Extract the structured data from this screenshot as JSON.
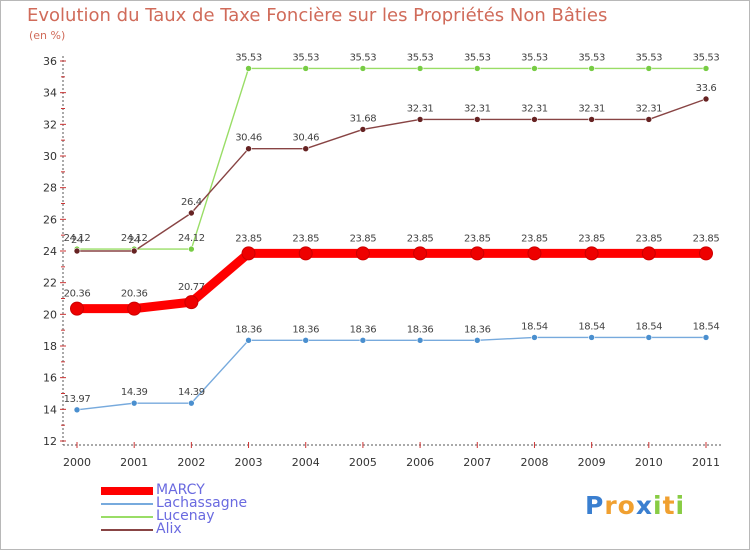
{
  "chart_data": {
    "type": "line",
    "title": "Evolution du Taux de Taxe Foncière sur les Propriétés Non Bâties",
    "ylabel": "(en %)",
    "xlabel": "",
    "x": [
      2000,
      2001,
      2002,
      2003,
      2004,
      2005,
      2006,
      2007,
      2008,
      2009,
      2010,
      2011
    ],
    "ylim": [
      12,
      36
    ],
    "yticks": [
      12,
      14,
      16,
      18,
      20,
      22,
      24,
      26,
      28,
      30,
      32,
      34,
      36
    ],
    "series": [
      {
        "name": "MARCY",
        "values": [
          20.36,
          20.36,
          20.77,
          23.85,
          23.85,
          23.85,
          23.85,
          23.85,
          23.85,
          23.85,
          23.85,
          23.85
        ],
        "labels": [
          "20.36",
          "20.36",
          "20.77",
          "23.85",
          "23.85",
          "23.85",
          "23.85",
          "23.85",
          "23.85",
          "23.85",
          "23.85",
          "23.85"
        ],
        "color": "#ff0000",
        "marker": "#ee0000",
        "bold": true
      },
      {
        "name": "Lachassagne",
        "values": [
          13.97,
          14.39,
          14.39,
          18.36,
          18.36,
          18.36,
          18.36,
          18.36,
          18.54,
          18.54,
          18.54,
          18.54
        ],
        "labels": [
          "13.97",
          "14.39",
          "14.39",
          "18.36",
          "18.36",
          "18.36",
          "18.36",
          "18.36",
          "18.54",
          "18.54",
          "18.54",
          "18.54"
        ],
        "color": "#77aadd",
        "marker": "#4a8fcf",
        "bold": false
      },
      {
        "name": "Lucenay",
        "values": [
          24.12,
          24.12,
          24.12,
          35.53,
          35.53,
          35.53,
          35.53,
          35.53,
          35.53,
          35.53,
          35.53,
          35.53
        ],
        "labels": [
          "24.12",
          "24.12",
          "24.12",
          "35.53",
          "35.53",
          "35.53",
          "35.53",
          "35.53",
          "35.53",
          "35.53",
          "35.53",
          "35.53"
        ],
        "color": "#99dd66",
        "marker": "#77cc44",
        "bold": false
      },
      {
        "name": "Alix",
        "values": [
          24,
          24,
          26.4,
          30.46,
          30.46,
          31.68,
          32.31,
          32.31,
          32.31,
          32.31,
          32.31,
          33.6
        ],
        "labels": [
          "24",
          "24",
          "26.4",
          "30.46",
          "30.46",
          "31.68",
          "32.31",
          "32.31",
          "32.31",
          "32.31",
          "32.31",
          "33.6"
        ],
        "color": "#884444",
        "marker": "#662222",
        "bold": false
      }
    ]
  },
  "legend": {
    "items": [
      {
        "label": "MARCY",
        "color": "#ff0000"
      },
      {
        "label": "Lachassagne",
        "color": "#77aadd"
      },
      {
        "label": "Lucenay",
        "color": "#99dd66"
      },
      {
        "label": "Alix",
        "color": "#884444"
      }
    ]
  },
  "logo": {
    "letters": [
      "P",
      "r",
      "o",
      "x",
      "i",
      "t",
      "i"
    ],
    "colors": [
      "#3a7fd0",
      "#f0a030",
      "#f0a030",
      "#3a7fd0",
      "#88cc44",
      "#f0a030",
      "#88cc44"
    ]
  }
}
